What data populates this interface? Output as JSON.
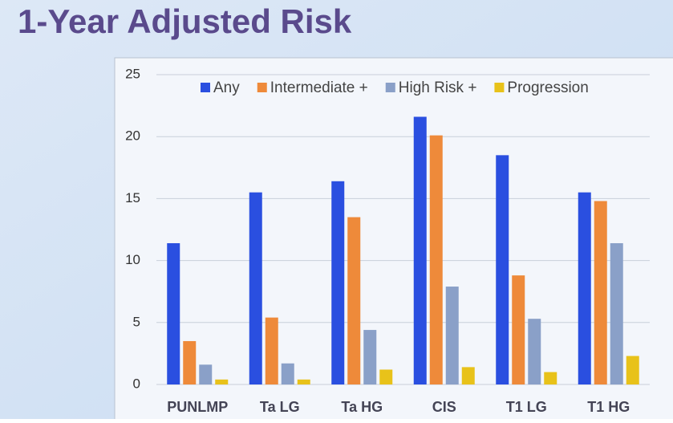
{
  "chart_data": {
    "type": "bar",
    "title": "1-Year Adjusted Risk",
    "categories": [
      "PUNLMP",
      "Ta LG",
      "Ta HG",
      "CIS",
      "T1 LG",
      "T1 HG"
    ],
    "series": [
      {
        "name": "Any",
        "color": "#2a4fe0",
        "values": [
          11.4,
          15.5,
          16.4,
          21.6,
          18.5,
          15.5
        ]
      },
      {
        "name": "Intermediate +",
        "color": "#ee8a3a",
        "values": [
          3.5,
          5.4,
          13.5,
          20.1,
          8.8,
          14.8
        ]
      },
      {
        "name": "High Risk +",
        "color": "#8aa0c8",
        "values": [
          1.6,
          1.7,
          4.4,
          7.9,
          5.3,
          11.4
        ]
      },
      {
        "name": "Progression",
        "color": "#e8c21a",
        "values": [
          0.4,
          0.4,
          1.2,
          1.4,
          1.0,
          2.3
        ]
      }
    ],
    "ylim": [
      0,
      25
    ],
    "yticks": [
      0,
      5,
      10,
      15,
      20,
      25
    ],
    "grid": true,
    "legend": "top"
  }
}
